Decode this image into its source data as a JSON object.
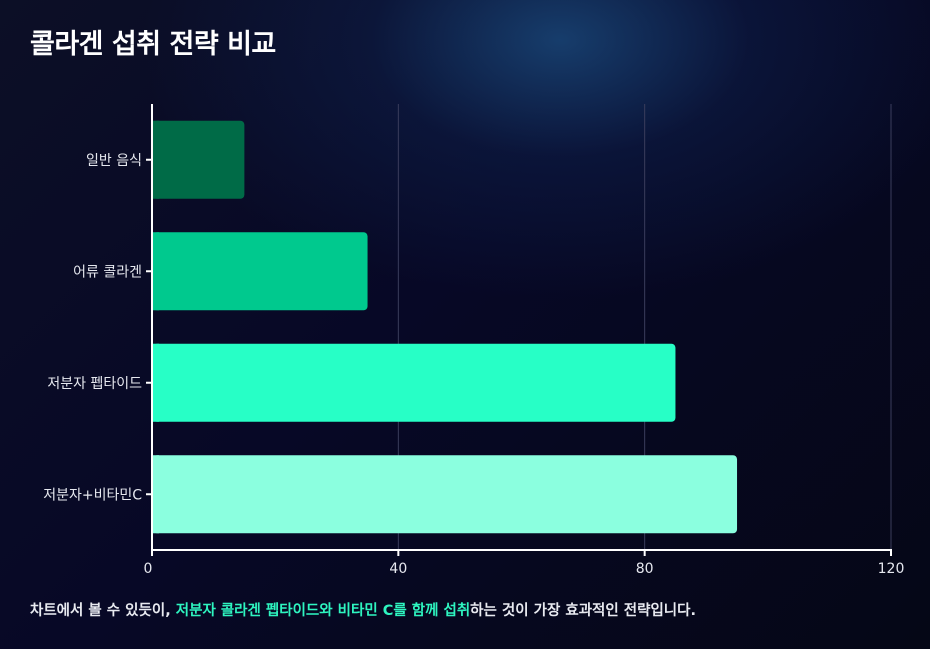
{
  "title": "콜라겐 섭취 전략 비교",
  "caption": {
    "before": "차트에서 볼 수 있듯이, ",
    "highlight_1": "저분자 콜라겐 펩타이드",
    "middle": "와 ",
    "highlight_2": "비타민 C를 함께 섭취",
    "after": "하는 것이 가장 효과적인 전략입니다."
  },
  "colors": {
    "bars": [
      "#006b47",
      "#00c98e",
      "#27ffc6",
      "#8bffdf"
    ],
    "highlight": "#2ef5c0",
    "axis": "#ffffff",
    "grid": "#3a3d5c"
  },
  "chart_data": {
    "type": "bar",
    "orientation": "horizontal",
    "categories": [
      "일반 음식",
      "어류 콜라겐",
      "저분자 펩타이드",
      "저분자+비타민C"
    ],
    "values": [
      15,
      35,
      85,
      95
    ],
    "xlim": [
      0,
      120
    ],
    "xticks": [
      0,
      40,
      80,
      120
    ],
    "xlabel": "",
    "ylabel": "",
    "grid": "vertical"
  }
}
